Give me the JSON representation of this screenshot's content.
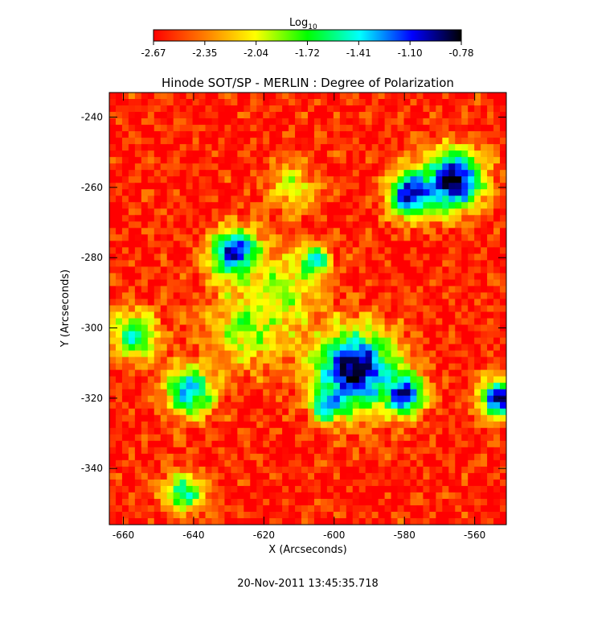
{
  "chart_data": {
    "type": "heatmap",
    "title": "Hinode SOT/SP - MERLIN : Degree of Polarization",
    "xlabel": "X (Arcseconds)",
    "ylabel": "Y (Arcseconds)",
    "xlim": [
      -664,
      -551
    ],
    "ylim": [
      -356,
      -233
    ],
    "x_ticks": [
      -660,
      -640,
      -620,
      -600,
      -580,
      -560
    ],
    "y_ticks": [
      -240,
      -260,
      -280,
      -300,
      -320,
      -340
    ],
    "colorbar": {
      "label": "Log",
      "label_subscript": "10",
      "range": [
        -2.67,
        -0.78
      ],
      "ticks": [
        "-2.67",
        "-2.35",
        "-2.04",
        "-1.72",
        "-1.41",
        "-1.10",
        "-0.78"
      ],
      "colormap": [
        "#ff0000",
        "#ff7f00",
        "#ffff00",
        "#00ff00",
        "#00ffff",
        "#0000ff",
        "#000000"
      ]
    },
    "features": [
      {
        "x": -566,
        "y": -258,
        "r": 6,
        "value": -0.8
      },
      {
        "x": -578,
        "y": -262,
        "r": 4.5,
        "value": -0.9
      },
      {
        "x": -628,
        "y": -279,
        "r": 5,
        "value": -0.9
      },
      {
        "x": -606,
        "y": -281,
        "r": 3,
        "value": -1.2
      },
      {
        "x": -594,
        "y": -312,
        "r": 8,
        "value": -0.8
      },
      {
        "x": -580,
        "y": -319,
        "r": 4,
        "value": -1.0
      },
      {
        "x": -602,
        "y": -322,
        "r": 3,
        "value": -1.1
      },
      {
        "x": -553,
        "y": -320,
        "r": 4,
        "value": -1.0
      },
      {
        "x": -641,
        "y": -318,
        "r": 5,
        "value": -1.3
      },
      {
        "x": -657,
        "y": -302,
        "r": 5,
        "value": -1.6
      },
      {
        "x": -643,
        "y": -347,
        "r": 4,
        "value": -1.5
      },
      {
        "x": -625,
        "y": -300,
        "r": 8,
        "value": -1.9
      },
      {
        "x": -615,
        "y": -290,
        "r": 8,
        "value": -1.9
      },
      {
        "x": -612,
        "y": -260,
        "r": 5,
        "value": -2.0
      }
    ],
    "background_value": -2.6
  },
  "footer": {
    "timestamp": "20-Nov-2011 13:45:35.718"
  }
}
